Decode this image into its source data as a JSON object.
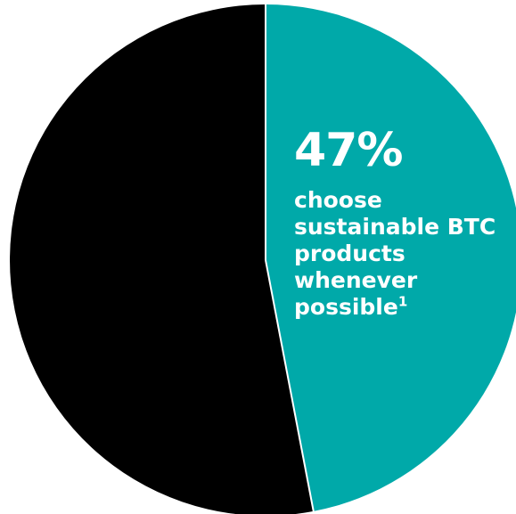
{
  "chart_data": {
    "type": "pie",
    "slices": [
      {
        "value": 47,
        "color": "#00a9a9"
      },
      {
        "value": 53,
        "color": "#000000"
      }
    ],
    "callout": {
      "value_text": "47%",
      "label": "choose sustainable BTC products whenever possible",
      "footnote": "1"
    }
  }
}
